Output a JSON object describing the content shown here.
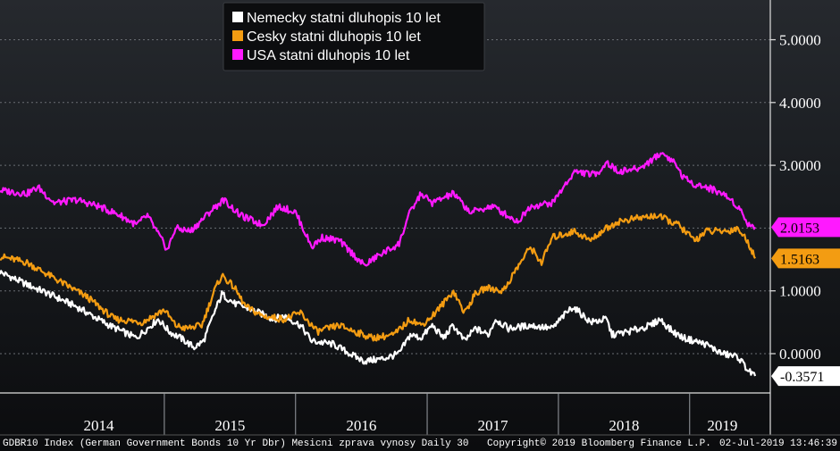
{
  "chart_data": {
    "type": "line",
    "x_range": [
      "2013-10-01",
      "2019-07-02"
    ],
    "ylim": [
      -0.6,
      5.6
    ],
    "y_ticks": [
      "5.0000",
      "4.0000",
      "3.0000",
      "1.0000",
      "0.0000"
    ],
    "y_tick_values": [
      5,
      4,
      3,
      1,
      0
    ],
    "x_year_labels": [
      "2014",
      "2015",
      "2016",
      "2017",
      "2018",
      "2019"
    ],
    "legend_placement": "top-center",
    "series": [
      {
        "name": "Nemecky statni dluhopis 10 let",
        "color": "#ffffff",
        "last_value_label": "-0.3571",
        "last_value": -0.3571,
        "points": [
          [
            "2013-10-01",
            1.3
          ],
          [
            "2013-12-15",
            1.1
          ],
          [
            "2014-02-15",
            0.95
          ],
          [
            "2014-05-01",
            0.75
          ],
          [
            "2014-08-01",
            0.45
          ],
          [
            "2014-10-15",
            0.25
          ],
          [
            "2014-12-15",
            0.55
          ],
          [
            "2015-01-15",
            0.35
          ],
          [
            "2015-02-15",
            0.25
          ],
          [
            "2015-03-25",
            0.1
          ],
          [
            "2015-04-20",
            0.2
          ],
          [
            "2015-05-20",
            0.65
          ],
          [
            "2015-06-10",
            0.95
          ],
          [
            "2015-07-15",
            0.8
          ],
          [
            "2015-09-01",
            0.7
          ],
          [
            "2015-11-01",
            0.55
          ],
          [
            "2015-12-01",
            0.6
          ],
          [
            "2016-01-15",
            0.45
          ],
          [
            "2016-02-15",
            0.2
          ],
          [
            "2016-04-15",
            0.15
          ],
          [
            "2016-06-15",
            -0.05
          ],
          [
            "2016-07-10",
            -0.12
          ],
          [
            "2016-09-01",
            -0.08
          ],
          [
            "2016-10-15",
            0.0
          ],
          [
            "2016-11-15",
            0.3
          ],
          [
            "2016-12-15",
            0.25
          ],
          [
            "2017-01-15",
            0.45
          ],
          [
            "2017-02-15",
            0.25
          ],
          [
            "2017-03-15",
            0.45
          ],
          [
            "2017-04-15",
            0.2
          ],
          [
            "2017-05-15",
            0.4
          ],
          [
            "2017-06-20",
            0.3
          ],
          [
            "2017-07-10",
            0.55
          ],
          [
            "2017-08-15",
            0.4
          ],
          [
            "2017-10-15",
            0.45
          ],
          [
            "2017-12-15",
            0.4
          ],
          [
            "2018-01-15",
            0.6
          ],
          [
            "2018-02-10",
            0.75
          ],
          [
            "2018-04-01",
            0.5
          ],
          [
            "2018-05-15",
            0.55
          ],
          [
            "2018-05-30",
            0.3
          ],
          [
            "2018-07-15",
            0.35
          ],
          [
            "2018-09-15",
            0.45
          ],
          [
            "2018-10-10",
            0.55
          ],
          [
            "2018-11-15",
            0.35
          ],
          [
            "2018-12-15",
            0.25
          ],
          [
            "2019-02-15",
            0.15
          ],
          [
            "2019-04-01",
            0.0
          ],
          [
            "2019-05-15",
            -0.05
          ],
          [
            "2019-06-15",
            -0.28
          ],
          [
            "2019-07-02",
            -0.3571
          ]
        ]
      },
      {
        "name": "Cesky statni dluhopis 10 let",
        "color": "#f39c12",
        "last_value_label": "1.5163",
        "last_value": 1.5163,
        "points": [
          [
            "2013-10-01",
            1.55
          ],
          [
            "2013-12-15",
            1.45
          ],
          [
            "2014-03-01",
            1.2
          ],
          [
            "2014-06-01",
            0.9
          ],
          [
            "2014-08-15",
            0.55
          ],
          [
            "2014-11-01",
            0.5
          ],
          [
            "2015-01-01",
            0.7
          ],
          [
            "2015-02-01",
            0.45
          ],
          [
            "2015-03-01",
            0.4
          ],
          [
            "2015-04-15",
            0.45
          ],
          [
            "2015-05-20",
            1.0
          ],
          [
            "2015-06-10",
            1.25
          ],
          [
            "2015-07-15",
            1.05
          ],
          [
            "2015-08-15",
            0.75
          ],
          [
            "2015-10-01",
            0.6
          ],
          [
            "2015-12-01",
            0.55
          ],
          [
            "2016-01-15",
            0.65
          ],
          [
            "2016-03-01",
            0.35
          ],
          [
            "2016-05-01",
            0.45
          ],
          [
            "2016-06-15",
            0.35
          ],
          [
            "2016-08-01",
            0.25
          ],
          [
            "2016-10-01",
            0.3
          ],
          [
            "2016-11-15",
            0.55
          ],
          [
            "2016-12-15",
            0.45
          ],
          [
            "2017-01-15",
            0.6
          ],
          [
            "2017-02-15",
            0.8
          ],
          [
            "2017-03-15",
            1.0
          ],
          [
            "2017-04-15",
            0.65
          ],
          [
            "2017-05-15",
            0.95
          ],
          [
            "2017-06-15",
            1.05
          ],
          [
            "2017-08-01",
            1.0
          ],
          [
            "2017-09-01",
            1.3
          ],
          [
            "2017-10-15",
            1.7
          ],
          [
            "2017-11-15",
            1.45
          ],
          [
            "2017-12-15",
            1.85
          ],
          [
            "2018-02-15",
            1.95
          ],
          [
            "2018-04-01",
            1.8
          ],
          [
            "2018-05-01",
            1.95
          ],
          [
            "2018-06-15",
            2.1
          ],
          [
            "2018-08-01",
            2.15
          ],
          [
            "2018-10-01",
            2.2
          ],
          [
            "2018-12-01",
            2.05
          ],
          [
            "2019-01-15",
            1.8
          ],
          [
            "2019-02-15",
            1.95
          ],
          [
            "2019-04-15",
            1.95
          ],
          [
            "2019-05-15",
            2.0
          ],
          [
            "2019-06-15",
            1.75
          ],
          [
            "2019-07-02",
            1.5163
          ]
        ]
      },
      {
        "name": "USA statni dluhopis 10 let",
        "color": "#ff19ff",
        "last_value_label": "2.0153",
        "last_value": 2.0153,
        "points": [
          [
            "2013-10-01",
            2.6
          ],
          [
            "2013-12-15",
            2.55
          ],
          [
            "2014-01-15",
            2.65
          ],
          [
            "2014-03-01",
            2.4
          ],
          [
            "2014-05-01",
            2.45
          ],
          [
            "2014-07-01",
            2.35
          ],
          [
            "2014-09-01",
            2.2
          ],
          [
            "2014-10-15",
            2.05
          ],
          [
            "2014-11-15",
            2.2
          ],
          [
            "2015-01-10",
            1.65
          ],
          [
            "2015-02-01",
            2.0
          ],
          [
            "2015-03-15",
            1.95
          ],
          [
            "2015-05-15",
            2.3
          ],
          [
            "2015-06-15",
            2.45
          ],
          [
            "2015-08-01",
            2.2
          ],
          [
            "2015-10-01",
            2.05
          ],
          [
            "2015-11-15",
            2.35
          ],
          [
            "2016-01-01",
            2.25
          ],
          [
            "2016-02-15",
            1.7
          ],
          [
            "2016-03-15",
            1.85
          ],
          [
            "2016-05-01",
            1.8
          ],
          [
            "2016-06-15",
            1.55
          ],
          [
            "2016-07-10",
            1.4
          ],
          [
            "2016-08-15",
            1.55
          ],
          [
            "2016-10-15",
            1.75
          ],
          [
            "2016-11-10",
            2.2
          ],
          [
            "2016-12-15",
            2.55
          ],
          [
            "2017-01-15",
            2.4
          ],
          [
            "2017-03-15",
            2.55
          ],
          [
            "2017-05-01",
            2.25
          ],
          [
            "2017-07-01",
            2.35
          ],
          [
            "2017-09-10",
            2.1
          ],
          [
            "2017-10-15",
            2.35
          ],
          [
            "2017-12-15",
            2.4
          ],
          [
            "2018-01-15",
            2.65
          ],
          [
            "2018-02-15",
            2.9
          ],
          [
            "2018-04-15",
            2.85
          ],
          [
            "2018-05-15",
            3.05
          ],
          [
            "2018-06-15",
            2.9
          ],
          [
            "2018-08-15",
            2.95
          ],
          [
            "2018-10-15",
            3.2
          ],
          [
            "2018-11-20",
            3.05
          ],
          [
            "2018-12-15",
            2.8
          ],
          [
            "2019-01-15",
            2.7
          ],
          [
            "2019-02-15",
            2.65
          ],
          [
            "2019-03-15",
            2.6
          ],
          [
            "2019-04-15",
            2.5
          ],
          [
            "2019-05-15",
            2.35
          ],
          [
            "2019-06-15",
            2.05
          ],
          [
            "2019-07-02",
            2.0153
          ]
        ]
      }
    ]
  },
  "footer": {
    "left": "GDBR10 Index (German Government Bonds 10 Yr Dbr) Mesicni zprava vynosy  Daily 30",
    "copyright": "Copyright© 2019 Bloomberg Finance L.P.",
    "timestamp": "02-Jul-2019 13:46:39"
  }
}
